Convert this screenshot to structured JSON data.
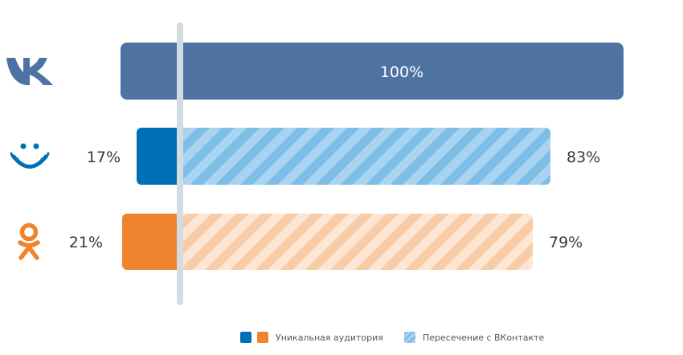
{
  "chart_data": {
    "type": "bar",
    "orientation": "horizontal",
    "stacked": true,
    "categories": [
      "vk",
      "mail",
      "ok"
    ],
    "icons": [
      "vk-logo-icon",
      "mail-smile-icon",
      "ok-logo-icon"
    ],
    "series": [
      {
        "name": "Уникальная аудитория",
        "values": [
          0,
          17,
          21
        ],
        "labels": [
          "",
          "17%",
          "21%"
        ]
      },
      {
        "name": "Пересечение с ВКонтакте",
        "values": [
          100,
          83,
          79
        ],
        "labels": [
          "100%",
          "83%",
          "79%"
        ]
      }
    ],
    "colors": {
      "vk": "#4e73a3",
      "mail_unique": "#0070b6",
      "mail_overlap_a": "#7dbde6",
      "mail_overlap_b": "#a9d4f1",
      "ok_unique": "#ee842d",
      "ok_overlap_a": "#f8cca6",
      "ok_overlap_b": "#fde6d4",
      "axis": "#d2dce3"
    },
    "xlim": [
      0,
      100
    ],
    "grid": false,
    "legend": {
      "position": "bottom-right",
      "unique_label": "Уникальная аудитория",
      "overlap_label": "Пересечение с ВКонтакте"
    }
  }
}
